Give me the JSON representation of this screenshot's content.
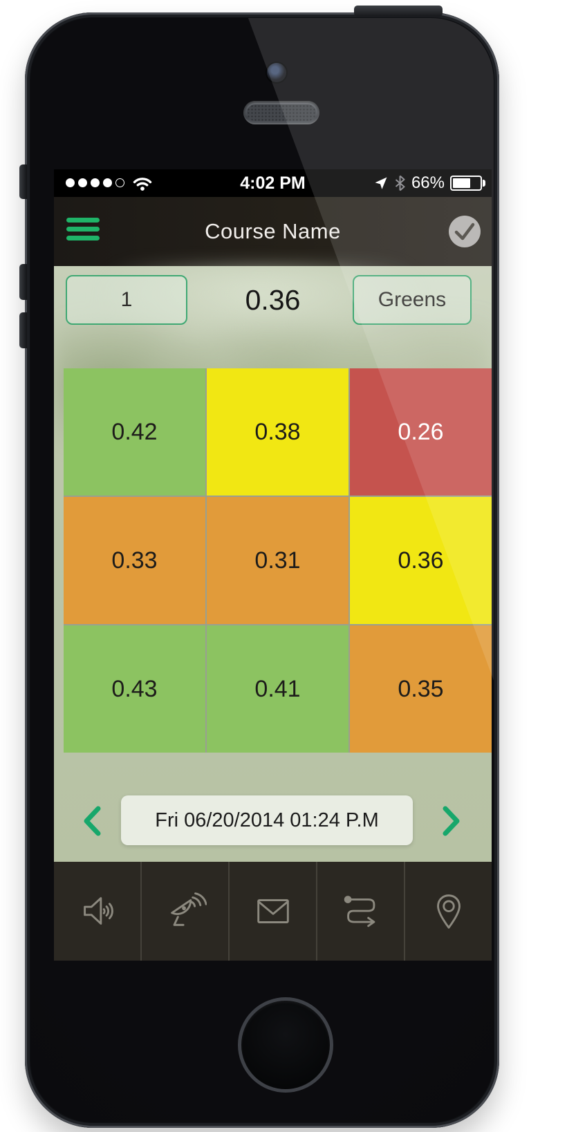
{
  "device": {
    "time": "4:02 PM",
    "battery_percent": "66%",
    "battery_fill": "66%",
    "signal": {
      "filled": 4,
      "total": 5
    }
  },
  "nav": {
    "title": "Course Name"
  },
  "selector": {
    "hole_label": "1",
    "reading": "0.36",
    "category_label": "Greens"
  },
  "grid": {
    "cells": [
      {
        "value": "0.42",
        "status": "green",
        "color": "#8cc361",
        "text_color": "#1d1c1a"
      },
      {
        "value": "0.38",
        "status": "yellow",
        "color": "#f1e713",
        "text_color": "#1d1c1a"
      },
      {
        "value": "0.26",
        "status": "red",
        "color": "#c5534e",
        "text_color": "#ffffff"
      },
      {
        "value": "0.33",
        "status": "orange",
        "color": "#e19b3a",
        "text_color": "#1d1c1a"
      },
      {
        "value": "0.31",
        "status": "orange",
        "color": "#e19b3a",
        "text_color": "#1d1c1a"
      },
      {
        "value": "0.36",
        "status": "yellow",
        "color": "#f1e713",
        "text_color": "#1d1c1a"
      },
      {
        "value": "0.43",
        "status": "green",
        "color": "#8cc361",
        "text_color": "#1d1c1a"
      },
      {
        "value": "0.41",
        "status": "green",
        "color": "#8cc361",
        "text_color": "#1d1c1a"
      },
      {
        "value": "0.35",
        "status": "orange",
        "color": "#e19b3a",
        "text_color": "#1d1c1a"
      }
    ]
  },
  "chart_data": {
    "type": "heatmap",
    "rows": 3,
    "cols": 3,
    "values": [
      [
        0.42,
        0.38,
        0.26
      ],
      [
        0.33,
        0.31,
        0.36
      ],
      [
        0.43,
        0.41,
        0.35
      ]
    ],
    "cell_status": [
      [
        "green",
        "yellow",
        "red"
      ],
      [
        "orange",
        "orange",
        "yellow"
      ],
      [
        "green",
        "green",
        "orange"
      ]
    ],
    "summary_value": 0.36,
    "hole": "1",
    "category": "Greens",
    "palette": {
      "green": "#8cc361",
      "yellow": "#f1e713",
      "orange": "#e19b3a",
      "red": "#c5534e"
    }
  },
  "date_nav": {
    "label": "Fri 06/20/2014 01:24 P.M"
  },
  "toolbar": {
    "items": [
      "volume",
      "satellite",
      "mail",
      "route",
      "location"
    ]
  },
  "colors": {
    "accent_green": "#1fb468",
    "chevron_green": "#17a76b",
    "nav_bg": "#242019",
    "toolbar_bg": "#2b2822",
    "content_bg": "#bcc6aa",
    "pill_bg": "#e9ede3",
    "selector_border": "#3fa873"
  }
}
